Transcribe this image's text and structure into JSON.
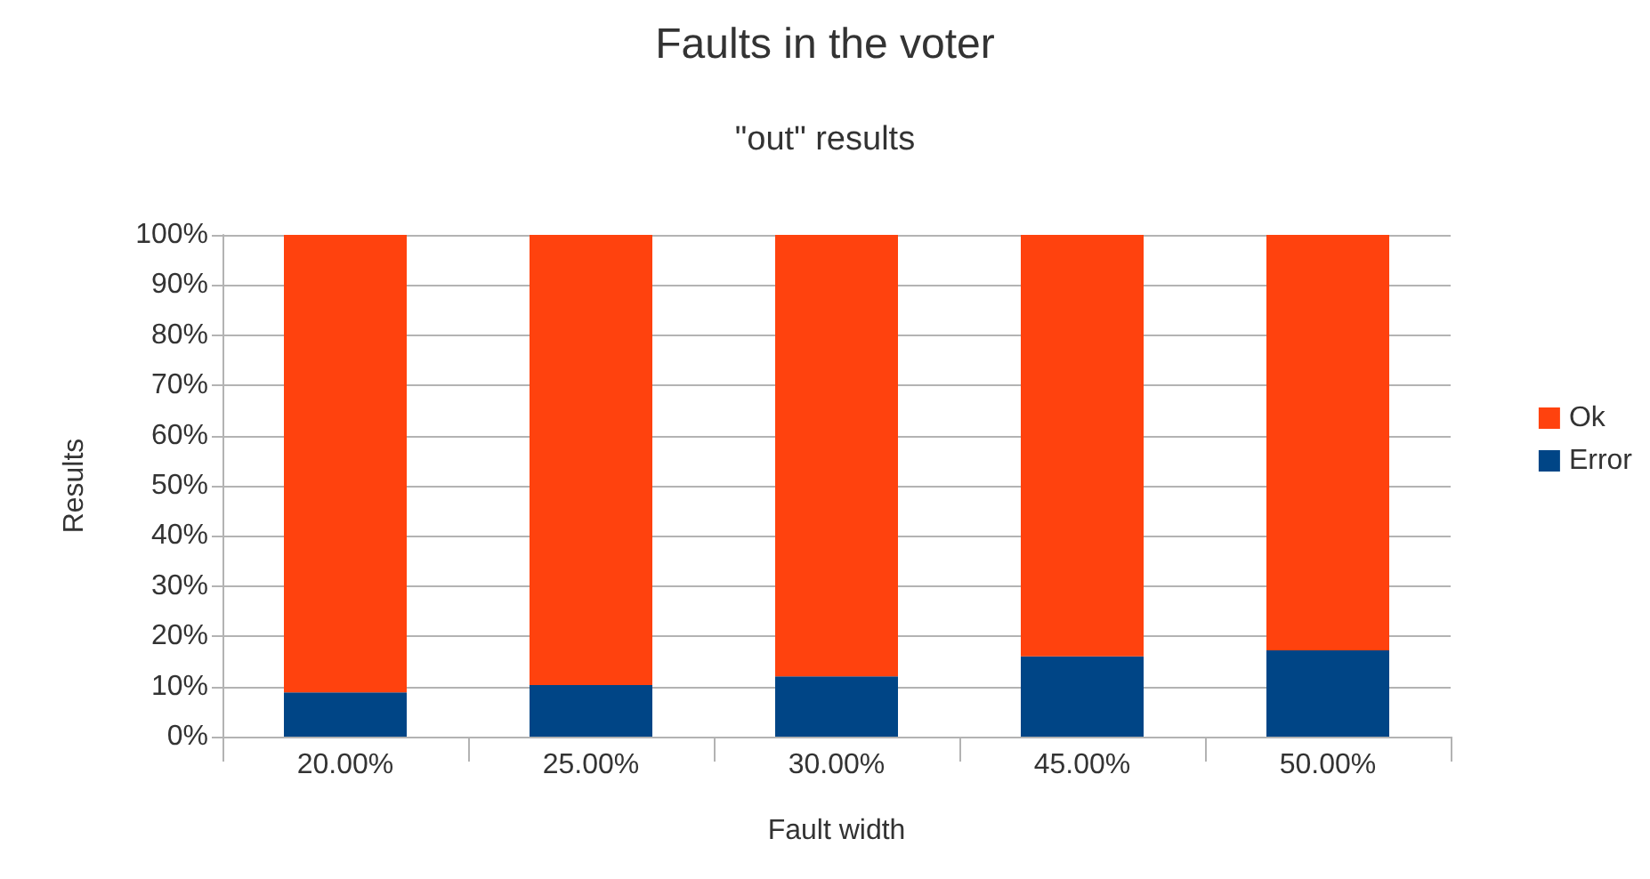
{
  "chart_data": {
    "type": "bar",
    "title": "Faults in the voter",
    "subtitle": "\"out\" results",
    "xlabel": "Fault width",
    "ylabel": "Results",
    "categories": [
      "20.00%",
      "25.00%",
      "30.00%",
      "45.00%",
      "50.00%"
    ],
    "stacked": true,
    "series": [
      {
        "name": "Error",
        "color": "#004586",
        "values": [
          8.8,
          10.3,
          12,
          16,
          17.2
        ]
      },
      {
        "name": "Ok",
        "color": "#ff420e",
        "values": [
          91.2,
          89.7,
          88,
          84,
          82.8
        ]
      }
    ],
    "ylim": [
      0,
      100
    ],
    "yticks": [
      {
        "value": 0,
        "label": "0%"
      },
      {
        "value": 10,
        "label": "10%"
      },
      {
        "value": 20,
        "label": "20%"
      },
      {
        "value": 30,
        "label": "30%"
      },
      {
        "value": 40,
        "label": "40%"
      },
      {
        "value": 50,
        "label": "50%"
      },
      {
        "value": 60,
        "label": "60%"
      },
      {
        "value": 70,
        "label": "70%"
      },
      {
        "value": 80,
        "label": "80%"
      },
      {
        "value": 90,
        "label": "90%"
      },
      {
        "value": 100,
        "label": "100%"
      }
    ],
    "grid": "y",
    "legend": "right"
  }
}
